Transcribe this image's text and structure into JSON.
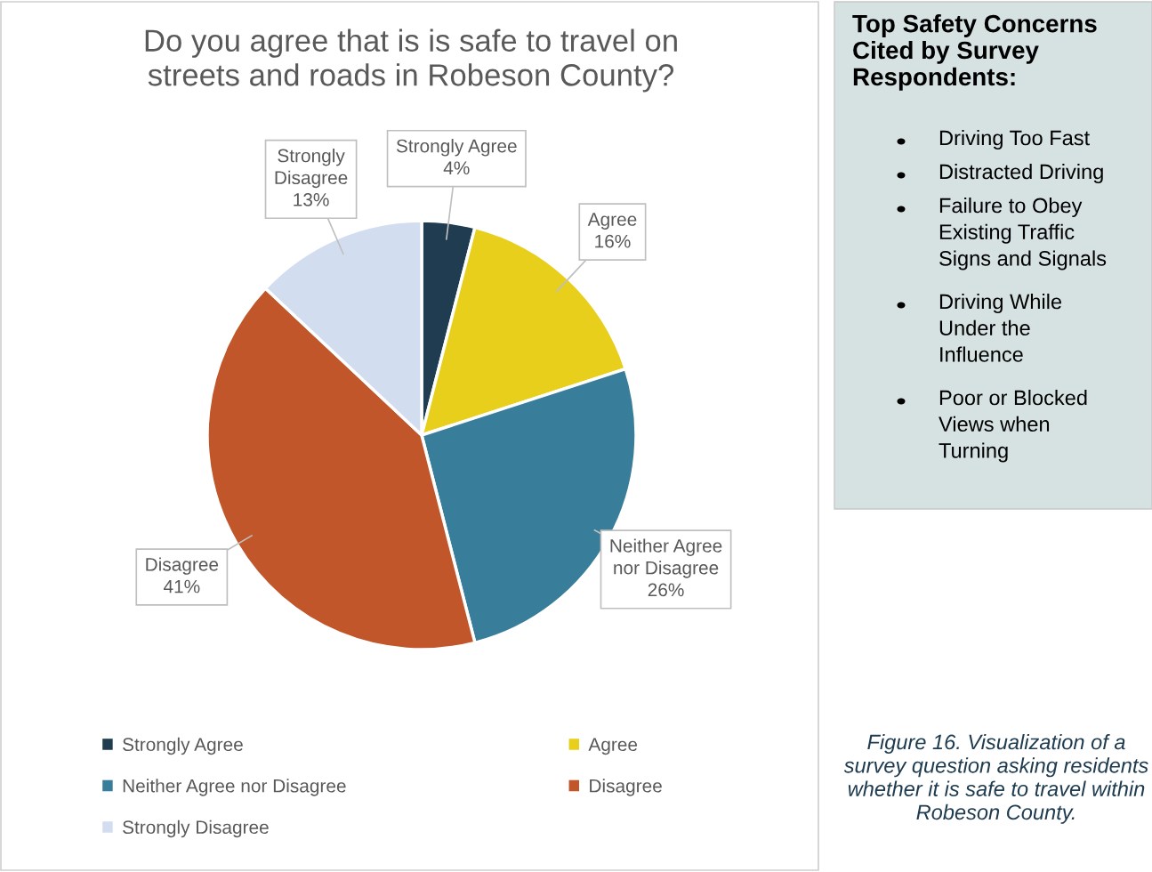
{
  "chart_data": [
    {
      "type": "pie",
      "title": "Do you agree that is is safe to travel on\nstreets and roads in Robeson County?",
      "categories": [
        "Strongly Agree",
        "Agree",
        "Neither Agree nor Disagree",
        "Disagree",
        "Strongly Disagree"
      ],
      "values": [
        4,
        16,
        26,
        41,
        13
      ],
      "colors": [
        "#1f3c50",
        "#e8cf1c",
        "#387d99",
        "#c0562a",
        "#d3ddf0"
      ],
      "value_labels": [
        "Strongly Agree\n4%",
        "Agree\n16%",
        "Neither Agree\nnor Disagree\n26%",
        "Disagree\n41%",
        "Strongly\nDisagree\n13%"
      ],
      "legend": "bottom",
      "annotations": [
        "Figure 16. Visualization of a\nsurvey question asking residents\nwhether it is safe to travel within\nRobeson County."
      ]
    },
    {
      "type": "other",
      "title": "Top Safety Concerns\nCited by Survey\nRespondents:",
      "annotations": [
        "Driving Too Fast",
        "Distracted Driving",
        "Failure to Obey\nExisting Traffic\nSigns and Signals",
        "Driving While\nUnder the\nInfluence",
        "Poor or Blocked\nViews when\nTurning"
      ]
    }
  ]
}
